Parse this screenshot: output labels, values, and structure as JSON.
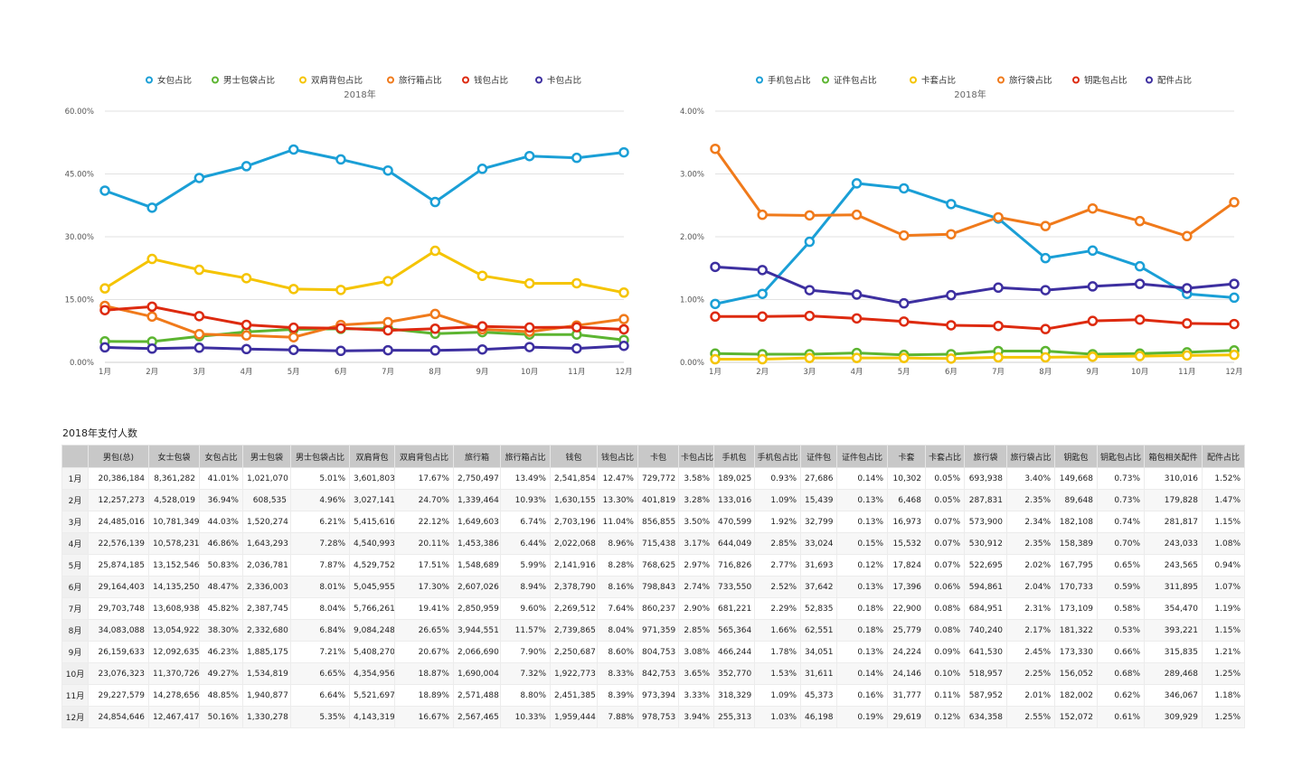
{
  "chart_data": [
    {
      "type": "line",
      "title": "2018年",
      "categories": [
        "1月",
        "2月",
        "3月",
        "4月",
        "5月",
        "6月",
        "7月",
        "8月",
        "9月",
        "10月",
        "11月",
        "12月"
      ],
      "ylim": [
        0,
        60
      ],
      "yticks": [
        "0.00%",
        "15.00%",
        "30.00%",
        "45.00%",
        "60.00%"
      ],
      "series": [
        {
          "name": "女包占比",
          "color": "#1a9fd6",
          "values": [
            41.01,
            36.94,
            44.03,
            46.86,
            50.83,
            48.47,
            45.82,
            38.3,
            46.23,
            49.27,
            48.85,
            50.16
          ]
        },
        {
          "name": "男士包袋占比",
          "color": "#5cb531",
          "values": [
            5.01,
            4.96,
            6.21,
            7.28,
            7.87,
            8.01,
            8.04,
            6.84,
            7.21,
            6.65,
            6.64,
            5.35
          ]
        },
        {
          "name": "双肩背包占比",
          "color": "#f5c400",
          "values": [
            17.67,
            24.7,
            22.12,
            20.11,
            17.51,
            17.3,
            19.41,
            26.65,
            20.67,
            18.87,
            18.89,
            16.67
          ]
        },
        {
          "name": "旅行箱占比",
          "color": "#f07a1b",
          "values": [
            13.49,
            10.93,
            6.74,
            6.44,
            5.99,
            8.94,
            9.6,
            11.57,
            7.9,
            7.32,
            8.8,
            10.33
          ]
        },
        {
          "name": "钱包占比",
          "color": "#dd2a0f",
          "values": [
            12.47,
            13.3,
            11.04,
            8.96,
            8.28,
            8.16,
            7.64,
            8.04,
            8.6,
            8.33,
            8.39,
            7.88
          ]
        },
        {
          "name": "卡包占比",
          "color": "#3d2fa0",
          "values": [
            3.58,
            3.28,
            3.5,
            3.17,
            2.97,
            2.74,
            2.9,
            2.85,
            3.08,
            3.65,
            3.33,
            3.94
          ]
        }
      ]
    },
    {
      "type": "line",
      "title": "2018年",
      "categories": [
        "1月",
        "2月",
        "3月",
        "4月",
        "5月",
        "6月",
        "7月",
        "8月",
        "9月",
        "10月",
        "11月",
        "12月"
      ],
      "ylim": [
        0,
        4
      ],
      "yticks": [
        "0.00%",
        "1.00%",
        "2.00%",
        "3.00%",
        "4.00%"
      ],
      "series": [
        {
          "name": "手机包占比",
          "color": "#1a9fd6",
          "values": [
            0.93,
            1.09,
            1.92,
            2.85,
            2.77,
            2.52,
            2.29,
            1.66,
            1.78,
            1.53,
            1.09,
            1.03
          ]
        },
        {
          "name": "证件包占比",
          "color": "#5cb531",
          "values": [
            0.14,
            0.13,
            0.13,
            0.15,
            0.12,
            0.13,
            0.18,
            0.18,
            0.13,
            0.14,
            0.16,
            0.19
          ]
        },
        {
          "name": "卡套占比",
          "color": "#f5c400",
          "values": [
            0.05,
            0.05,
            0.07,
            0.07,
            0.07,
            0.06,
            0.08,
            0.08,
            0.09,
            0.1,
            0.11,
            0.12
          ]
        },
        {
          "name": "旅行袋占比",
          "color": "#f07a1b",
          "values": [
            3.4,
            2.35,
            2.34,
            2.35,
            2.02,
            2.04,
            2.31,
            2.17,
            2.45,
            2.25,
            2.01,
            2.55
          ]
        },
        {
          "name": "钥匙包占比",
          "color": "#dd2a0f",
          "values": [
            0.73,
            0.73,
            0.74,
            0.7,
            0.65,
            0.59,
            0.58,
            0.53,
            0.66,
            0.68,
            0.62,
            0.61
          ]
        },
        {
          "name": "配件占比",
          "color": "#3d2fa0",
          "values": [
            1.52,
            1.47,
            1.15,
            1.08,
            0.94,
            1.07,
            1.19,
            1.15,
            1.21,
            1.25,
            1.18,
            1.25
          ]
        }
      ]
    }
  ],
  "table": {
    "title": "2018年支付人数",
    "headers": [
      "",
      "男包(总)",
      "女士包袋",
      "女包占比",
      "男士包袋",
      "男士包袋占比",
      "双肩背包",
      "双肩背包占比",
      "旅行箱",
      "旅行箱占比",
      "钱包",
      "钱包占比",
      "卡包",
      "卡包占比",
      "手机包",
      "手机包占比",
      "证件包",
      "证件包占比",
      "卡套",
      "卡套占比",
      "旅行袋",
      "旅行袋占比",
      "钥匙包",
      "钥匙包占比",
      "箱包相关配件",
      "配件占比"
    ],
    "rows": [
      [
        "1月",
        "20,386,184",
        "8,361,282",
        "41.01%",
        "1,021,070",
        "5.01%",
        "3,601,803",
        "17.67%",
        "2,750,497",
        "13.49%",
        "2,541,854",
        "12.47%",
        "729,772",
        "3.58%",
        "189,025",
        "0.93%",
        "27,686",
        "0.14%",
        "10,302",
        "0.05%",
        "693,938",
        "3.40%",
        "149,668",
        "0.73%",
        "310,016",
        "1.52%"
      ],
      [
        "2月",
        "12,257,273",
        "4,528,019",
        "36.94%",
        "608,535",
        "4.96%",
        "3,027,141",
        "24.70%",
        "1,339,464",
        "10.93%",
        "1,630,155",
        "13.30%",
        "401,819",
        "3.28%",
        "133,016",
        "1.09%",
        "15,439",
        "0.13%",
        "6,468",
        "0.05%",
        "287,831",
        "2.35%",
        "89,648",
        "0.73%",
        "179,828",
        "1.47%"
      ],
      [
        "3月",
        "24,485,016",
        "10,781,349",
        "44.03%",
        "1,520,274",
        "6.21%",
        "5,415,616",
        "22.12%",
        "1,649,603",
        "6.74%",
        "2,703,196",
        "11.04%",
        "856,855",
        "3.50%",
        "470,599",
        "1.92%",
        "32,799",
        "0.13%",
        "16,973",
        "0.07%",
        "573,900",
        "2.34%",
        "182,108",
        "0.74%",
        "281,817",
        "1.15%"
      ],
      [
        "4月",
        "22,576,139",
        "10,578,231",
        "46.86%",
        "1,643,293",
        "7.28%",
        "4,540,993",
        "20.11%",
        "1,453,386",
        "6.44%",
        "2,022,068",
        "8.96%",
        "715,438",
        "3.17%",
        "644,049",
        "2.85%",
        "33,024",
        "0.15%",
        "15,532",
        "0.07%",
        "530,912",
        "2.35%",
        "158,389",
        "0.70%",
        "243,033",
        "1.08%"
      ],
      [
        "5月",
        "25,874,185",
        "13,152,546",
        "50.83%",
        "2,036,781",
        "7.87%",
        "4,529,752",
        "17.51%",
        "1,548,689",
        "5.99%",
        "2,141,916",
        "8.28%",
        "768,625",
        "2.97%",
        "716,826",
        "2.77%",
        "31,693",
        "0.12%",
        "17,824",
        "0.07%",
        "522,695",
        "2.02%",
        "167,795",
        "0.65%",
        "243,565",
        "0.94%"
      ],
      [
        "6月",
        "29,164,403",
        "14,135,250",
        "48.47%",
        "2,336,003",
        "8.01%",
        "5,045,955",
        "17.30%",
        "2,607,026",
        "8.94%",
        "2,378,790",
        "8.16%",
        "798,843",
        "2.74%",
        "733,550",
        "2.52%",
        "37,642",
        "0.13%",
        "17,396",
        "0.06%",
        "594,861",
        "2.04%",
        "170,733",
        "0.59%",
        "311,895",
        "1.07%"
      ],
      [
        "7月",
        "29,703,748",
        "13,608,938",
        "45.82%",
        "2,387,745",
        "8.04%",
        "5,766,261",
        "19.41%",
        "2,850,959",
        "9.60%",
        "2,269,512",
        "7.64%",
        "860,237",
        "2.90%",
        "681,221",
        "2.29%",
        "52,835",
        "0.18%",
        "22,900",
        "0.08%",
        "684,951",
        "2.31%",
        "173,109",
        "0.58%",
        "354,470",
        "1.19%"
      ],
      [
        "8月",
        "34,083,088",
        "13,054,922",
        "38.30%",
        "2,332,680",
        "6.84%",
        "9,084,248",
        "26.65%",
        "3,944,551",
        "11.57%",
        "2,739,865",
        "8.04%",
        "971,359",
        "2.85%",
        "565,364",
        "1.66%",
        "62,551",
        "0.18%",
        "25,779",
        "0.08%",
        "740,240",
        "2.17%",
        "181,322",
        "0.53%",
        "393,221",
        "1.15%"
      ],
      [
        "9月",
        "26,159,633",
        "12,092,635",
        "46.23%",
        "1,885,175",
        "7.21%",
        "5,408,270",
        "20.67%",
        "2,066,690",
        "7.90%",
        "2,250,687",
        "8.60%",
        "804,753",
        "3.08%",
        "466,244",
        "1.78%",
        "34,051",
        "0.13%",
        "24,224",
        "0.09%",
        "641,530",
        "2.45%",
        "173,330",
        "0.66%",
        "315,835",
        "1.21%"
      ],
      [
        "10月",
        "23,076,323",
        "11,370,726",
        "49.27%",
        "1,534,819",
        "6.65%",
        "4,354,956",
        "18.87%",
        "1,690,004",
        "7.32%",
        "1,922,773",
        "8.33%",
        "842,753",
        "3.65%",
        "352,770",
        "1.53%",
        "31,611",
        "0.14%",
        "24,146",
        "0.10%",
        "518,957",
        "2.25%",
        "156,052",
        "0.68%",
        "289,468",
        "1.25%"
      ],
      [
        "11月",
        "29,227,579",
        "14,278,656",
        "48.85%",
        "1,940,877",
        "6.64%",
        "5,521,697",
        "18.89%",
        "2,571,488",
        "8.80%",
        "2,451,385",
        "8.39%",
        "973,394",
        "3.33%",
        "318,329",
        "1.09%",
        "45,373",
        "0.16%",
        "31,777",
        "0.11%",
        "587,952",
        "2.01%",
        "182,002",
        "0.62%",
        "346,067",
        "1.18%"
      ],
      [
        "12月",
        "24,854,646",
        "12,467,417",
        "50.16%",
        "1,330,278",
        "5.35%",
        "4,143,319",
        "16.67%",
        "2,567,465",
        "10.33%",
        "1,959,444",
        "7.88%",
        "978,753",
        "3.94%",
        "255,313",
        "1.03%",
        "46,198",
        "0.19%",
        "29,619",
        "0.12%",
        "634,358",
        "2.55%",
        "152,072",
        "0.61%",
        "309,929",
        "1.25%"
      ]
    ]
  }
}
